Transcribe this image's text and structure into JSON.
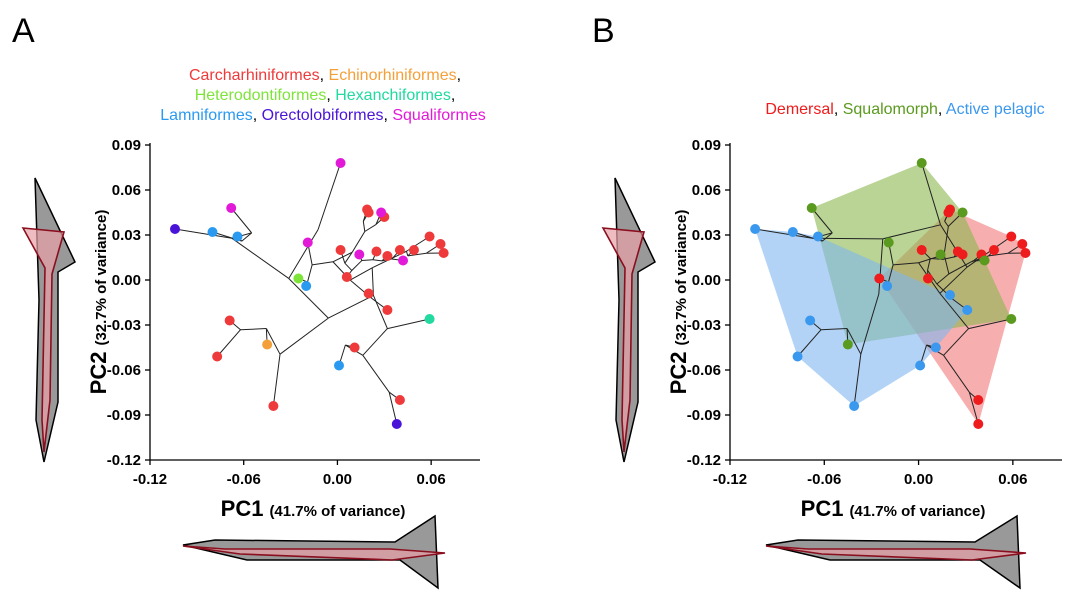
{
  "figure": {
    "panels": [
      {
        "letter": "A",
        "legend_lines": [
          [
            {
              "text": "Carcharhiniformes",
              "color": "#ee3a3a"
            },
            {
              "text": ",  ",
              "color": "#000000"
            },
            {
              "text": "Echinorhiniformes",
              "color": "#f3a03a"
            },
            {
              "text": ",",
              "color": "#000000"
            }
          ],
          [
            {
              "text": "Heterodontiformes",
              "color": "#7ee43a"
            },
            {
              "text": ", ",
              "color": "#000000"
            },
            {
              "text": "Hexanchiformes",
              "color": "#22d9a0"
            },
            {
              "text": ",",
              "color": "#000000"
            }
          ],
          [
            {
              "text": "Lamniformes",
              "color": "#2a9af0"
            },
            {
              "text": ",  ",
              "color": "#000000"
            },
            {
              "text": "Orectolobiformes",
              "color": "#4a14d8"
            },
            {
              "text": ",  ",
              "color": "#000000"
            },
            {
              "text": "Squaliformes",
              "color": "#e21ad8"
            }
          ]
        ]
      },
      {
        "letter": "B",
        "legend_lines": [
          [
            {
              "text": "Demersal",
              "color": "#ee1c1c"
            },
            {
              "text": ", ",
              "color": "#000000"
            },
            {
              "text": "Squalomorph",
              "color": "#5a9a1e"
            },
            {
              "text": ", ",
              "color": "#000000"
            },
            {
              "text": "Active pelagic",
              "color": "#3a98ee"
            }
          ]
        ]
      }
    ],
    "x_axis_label": {
      "main": "PC1",
      "sub": "(41.7% of variance)"
    },
    "y_axis_label": {
      "main": "PC2",
      "sub": "(32.7% of variance)"
    }
  },
  "chart_data": [
    {
      "type": "scatter",
      "panel": "A",
      "xlabel": "PC1 (41.7% of variance)",
      "ylabel": "PC2 (32.7% of variance)",
      "xlim": [
        -0.12,
        0.09
      ],
      "ylim": [
        -0.12,
        0.09
      ],
      "x_ticks": [
        "-0.12",
        "-0.06",
        "0.00",
        "0.06"
      ],
      "y_ticks": [
        "0.09",
        "0.06",
        "0.03",
        "0.00",
        "-0.03",
        "-0.06",
        "-0.09",
        "-0.12"
      ],
      "grid": false,
      "legend_position": "top",
      "series": [
        {
          "name": "Carcharhiniformes",
          "color": "#ee3a3a",
          "points": [
            [
              0.019,
              0.047
            ],
            [
              0.02,
              0.045
            ],
            [
              0.03,
              0.042
            ],
            [
              0.002,
              0.02
            ],
            [
              0.025,
              0.019
            ],
            [
              0.032,
              0.016
            ],
            [
              0.04,
              0.02
            ],
            [
              0.049,
              0.02
            ],
            [
              0.059,
              0.029
            ],
            [
              0.066,
              0.024
            ],
            [
              0.068,
              0.018
            ],
            [
              0.006,
              0.002
            ],
            [
              0.02,
              -0.009
            ],
            [
              0.032,
              -0.02
            ],
            [
              -0.069,
              -0.027
            ],
            [
              -0.077,
              -0.051
            ],
            [
              0.011,
              -0.045
            ],
            [
              0.04,
              -0.08
            ],
            [
              -0.041,
              -0.084
            ]
          ]
        },
        {
          "name": "Echinorhiniformes",
          "color": "#f3a03a",
          "points": [
            [
              -0.045,
              -0.043
            ]
          ]
        },
        {
          "name": "Heterodontiformes",
          "color": "#7ee43a",
          "points": [
            [
              -0.025,
              0.001
            ]
          ]
        },
        {
          "name": "Hexanchiformes",
          "color": "#22d9a0",
          "points": [
            [
              0.059,
              -0.026
            ]
          ]
        },
        {
          "name": "Lamniformes",
          "color": "#2a9af0",
          "points": [
            [
              -0.08,
              0.032
            ],
            [
              -0.064,
              0.029
            ],
            [
              -0.02,
              -0.004
            ],
            [
              0.001,
              -0.057
            ]
          ]
        },
        {
          "name": "Orectolobiformes",
          "color": "#4a14d8",
          "points": [
            [
              -0.104,
              0.034
            ],
            [
              0.038,
              -0.096
            ]
          ]
        },
        {
          "name": "Squaliformes",
          "color": "#e21ad8",
          "points": [
            [
              0.002,
              0.078
            ],
            [
              -0.068,
              0.048
            ],
            [
              0.028,
              0.045
            ],
            [
              -0.019,
              0.025
            ],
            [
              0.014,
              0.017
            ],
            [
              0.042,
              0.013
            ]
          ]
        }
      ]
    },
    {
      "type": "scatter",
      "panel": "B",
      "xlabel": "PC1 (41.7% of variance)",
      "ylabel": "PC2 (32.7% of variance)",
      "xlim": [
        -0.12,
        0.09
      ],
      "ylim": [
        -0.12,
        0.09
      ],
      "x_ticks": [
        "-0.12",
        "-0.06",
        "0.00",
        "0.06"
      ],
      "y_ticks": [
        "0.09",
        "0.06",
        "0.03",
        "0.00",
        "-0.03",
        "-0.06",
        "-0.09",
        "-0.12"
      ],
      "grid": false,
      "legend_position": "top",
      "series": [
        {
          "name": "Demersal",
          "color": "#ee1c1c",
          "hull_color": "#f27878",
          "points": [
            [
              0.02,
              0.047
            ],
            [
              0.019,
              0.045
            ],
            [
              0.002,
              0.02
            ],
            [
              0.025,
              0.019
            ],
            [
              0.028,
              0.017
            ],
            [
              0.04,
              0.017
            ],
            [
              0.048,
              0.02
            ],
            [
              0.059,
              0.029
            ],
            [
              0.066,
              0.024
            ],
            [
              0.068,
              0.018
            ],
            [
              -0.025,
              0.001
            ],
            [
              0.006,
              0.001
            ],
            [
              0.038,
              -0.08
            ],
            [
              0.038,
              -0.096
            ]
          ]
        },
        {
          "name": "Squalomorph",
          "color": "#5a9a1e",
          "hull_color": "#8ab84e",
          "points": [
            [
              0.002,
              0.078
            ],
            [
              -0.068,
              0.048
            ],
            [
              0.028,
              0.045
            ],
            [
              -0.019,
              0.025
            ],
            [
              0.014,
              0.017
            ],
            [
              0.042,
              0.013
            ],
            [
              0.059,
              -0.026
            ],
            [
              -0.045,
              -0.043
            ]
          ]
        },
        {
          "name": "Active pelagic",
          "color": "#3a98ee",
          "hull_color": "#7fb6ee",
          "points": [
            [
              -0.104,
              0.034
            ],
            [
              -0.08,
              0.032
            ],
            [
              -0.064,
              0.029
            ],
            [
              -0.02,
              -0.004
            ],
            [
              0.02,
              -0.01
            ],
            [
              0.031,
              -0.02
            ],
            [
              -0.069,
              -0.027
            ],
            [
              -0.077,
              -0.051
            ],
            [
              0.011,
              -0.045
            ],
            [
              0.001,
              -0.057
            ],
            [
              -0.041,
              -0.084
            ]
          ]
        }
      ]
    }
  ]
}
